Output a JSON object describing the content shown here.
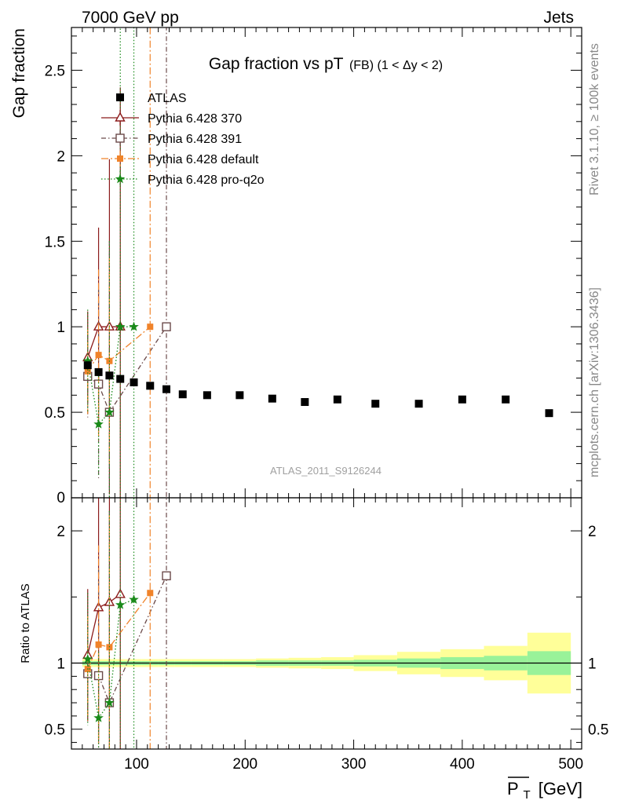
{
  "header": {
    "left": "7000 GeV pp",
    "right": "Jets"
  },
  "side_labels": {
    "rivet": "Rivet 3.1.10, ≥ 100k events",
    "mcplots": "mcplots.cern.ch [arXiv:1306.3436]"
  },
  "chart_data": {
    "type": "scatter",
    "title_main": "Gap fraction vs pT",
    "title_sub": "(FB) (1 < Δy < 2)",
    "watermark": "ATLAS_2011_S9126244",
    "xlabel": "P̅T [GeV]",
    "xlabel_base": "P",
    "xlabel_sub": "T",
    "xlabel_unit": "[GeV]",
    "ylabel": "Gap fraction",
    "ratio_ylabel": "Ratio to ATLAS",
    "xlim": [
      40,
      510
    ],
    "ylim": [
      0,
      2.75
    ],
    "ratio_ylim": [
      0.35,
      2.25
    ],
    "x_ticks": [
      "100",
      "200",
      "300",
      "400",
      "500"
    ],
    "y_ticks": [
      "0.5",
      "1",
      "1.5",
      "2",
      "2.5"
    ],
    "y_tick0": "0",
    "ratio_y_ticks": [
      "0.5",
      "1",
      "2"
    ],
    "data": {
      "name": "ATLAS",
      "color": "#000000",
      "x": [
        55,
        65,
        75,
        85,
        97.5,
        112.5,
        127.5,
        142.5,
        165,
        195,
        225,
        255,
        285,
        320,
        360,
        400,
        440,
        480
      ],
      "y": [
        0.775,
        0.735,
        0.715,
        0.695,
        0.675,
        0.655,
        0.635,
        0.605,
        0.6,
        0.6,
        0.58,
        0.56,
        0.575,
        0.55,
        0.55,
        0.575,
        0.575,
        0.495
      ]
    },
    "band": {
      "x_edges": [
        50,
        60,
        70,
        80,
        90,
        105,
        120,
        135,
        150,
        180,
        210,
        240,
        270,
        300,
        340,
        380,
        420,
        460,
        500
      ],
      "green_half": [
        0.015,
        0.015,
        0.015,
        0.015,
        0.015,
        0.015,
        0.015,
        0.015,
        0.015,
        0.015,
        0.02,
        0.02,
        0.02,
        0.025,
        0.035,
        0.045,
        0.055,
        0.09
      ],
      "yellow_half": [
        0.03,
        0.03,
        0.03,
        0.03,
        0.03,
        0.03,
        0.03,
        0.03,
        0.03,
        0.03,
        0.035,
        0.04,
        0.045,
        0.06,
        0.085,
        0.105,
        0.13,
        0.23
      ],
      "green_color": "#99f299",
      "yellow_color": "#ffff99"
    },
    "series": [
      {
        "name": "Pythia 6.428 370",
        "color": "#8b1a1a",
        "marker": "triangle-open",
        "dash": "",
        "x": [
          55,
          65,
          75,
          85
        ],
        "y": [
          0.82,
          1.0,
          1.0,
          1.0
        ],
        "err": [
          0.27,
          0.58,
          0.98,
          1.4
        ],
        "ratio": [
          1.06,
          1.42,
          1.46,
          1.52
        ],
        "ratio_err": [
          0.5,
          1.0,
          1.35,
          2.0
        ]
      },
      {
        "name": "Pythia 6.428 391",
        "color": "#6b4a4a",
        "marker": "square-open",
        "dash": "6,3,1.5,3",
        "x": [
          55,
          65,
          75,
          127.5
        ],
        "y": [
          0.71,
          0.665,
          0.5,
          1.0
        ],
        "err": [
          0.24,
          0.55,
          1.0,
          3.0
        ],
        "ratio": [
          0.92,
          0.905,
          0.7,
          1.66
        ],
        "ratio_err": [
          0.35,
          0.8,
          1.45,
          2.0
        ]
      },
      {
        "name": "Pythia 6.428 default",
        "color": "#f0832a",
        "marker": "square-filled",
        "dash": "9,3,2,3",
        "x": [
          55,
          65,
          75,
          112.5
        ],
        "y": [
          0.74,
          0.835,
          0.8,
          1.0
        ],
        "err": [
          0.25,
          0.5,
          0.6,
          3.0
        ],
        "ratio": [
          0.955,
          1.14,
          1.12,
          1.53
        ],
        "ratio_err": [
          0.4,
          0.75,
          1.0,
          2.5
        ]
      },
      {
        "name": "Pythia 6.428 pro-q2o",
        "color": "#1a8a1a",
        "marker": "star",
        "dash": "1.5,2.5",
        "x": [
          55,
          65,
          75,
          85,
          97.5
        ],
        "y": [
          0.8,
          0.43,
          0.5,
          1.0,
          1.0
        ],
        "err": [
          0.3,
          0.3,
          1.0,
          2.0,
          3.0
        ],
        "ratio": [
          1.03,
          0.585,
          0.7,
          1.44,
          1.48
        ],
        "ratio_err": [
          0.5,
          0.5,
          1.45,
          2.5,
          2.5
        ]
      }
    ],
    "legend_position": "top-left"
  }
}
